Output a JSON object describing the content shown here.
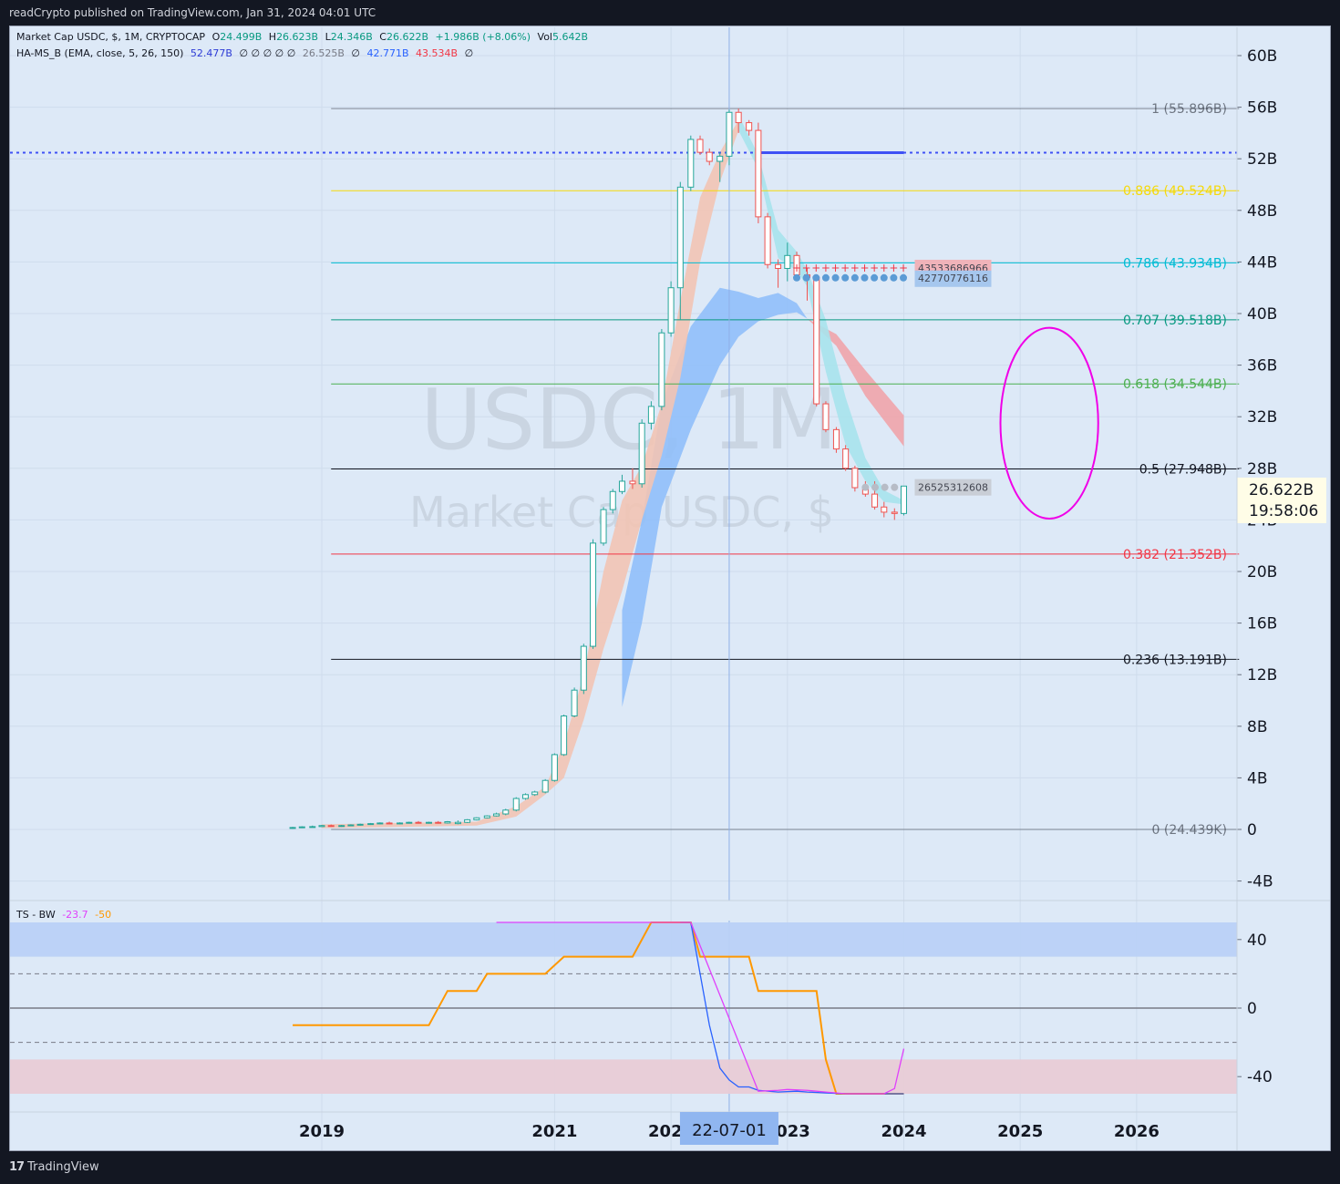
{
  "header": {
    "publisher_text": "readCrypto published on TradingView.com, Jan 31, 2024 04:01 UTC"
  },
  "footer": {
    "brand": "TradingView"
  },
  "watermark": {
    "symbol": "USDC, 1M",
    "name": "Market Cap USDC, $"
  },
  "legend": {
    "main": {
      "title": "Market Cap USDC, $, 1M, CRYPTOCAP",
      "o_label": "O",
      "o": "24.499B",
      "h_label": "H",
      "h": "26.623B",
      "l_label": "L",
      "l": "24.346B",
      "c_label": "C",
      "c": "26.622B",
      "change": "+1.986B (+8.06%)",
      "vol_label": "Vol",
      "vol": "5.642B"
    },
    "indicator": {
      "title": "HA-MS_B (EMA, close, 5, 26, 150)",
      "v1": "52.477B",
      "zeros": "∅ ∅ ∅ ∅ ∅",
      "v2": "26.525B",
      "z2": "∅",
      "v3": "42.771B",
      "v4": "43.534B",
      "z3": "∅"
    },
    "osc": {
      "title": "TS - BW",
      "v1": "-23.7",
      "v2": "-50"
    }
  },
  "price_label": {
    "value": "26.622B",
    "countdown": "19:58:06"
  },
  "crosshair_label": "22-07-01",
  "colors": {
    "up": "#26a69a",
    "down": "#ef5350",
    "fib_886": "#f5d90a",
    "fib_786": "#00bcd4",
    "fib_707": "#089981",
    "fib_618": "#4caf50",
    "fib_382": "#f23645",
    "fib_neutral": "#131722",
    "ribbon_blue": "#90bff9",
    "ribbon_cyan": "#a7e3ec",
    "ribbon_red": "#f0a4aa",
    "ribbon_salmon": "#f2c4b4",
    "osc_blue": "#2962ff",
    "osc_orange": "#ff9800",
    "osc_magenta": "#e040fb",
    "circle": "#f000e8",
    "dotted_blue": "#3f51f5"
  },
  "chart_data": [
    {
      "type": "candlestick",
      "title": "Market Cap USDC, $, 1M, CRYPTOCAP",
      "y_axis": {
        "ticks": [
          "-4B",
          "0",
          "4B",
          "8B",
          "12B",
          "16B",
          "20B",
          "24B",
          "28B",
          "32B",
          "36B",
          "40B",
          "44B",
          "48B",
          "52B",
          "56B",
          "60B"
        ],
        "tick_values": [
          -4,
          0,
          4,
          8,
          12,
          16,
          20,
          24,
          28,
          32,
          36,
          40,
          44,
          48,
          52,
          56,
          60
        ],
        "unit": "B"
      },
      "x_axis": {
        "ticks": [
          "2019",
          "2021",
          "2022",
          "2023",
          "2024",
          "2025",
          "2026"
        ],
        "tick_values": [
          2019.0,
          2021.0,
          2022.0,
          2023.0,
          2024.0,
          2025.0,
          2026.0
        ]
      },
      "candles": [
        {
          "t": 2018.75,
          "o": 0.1,
          "h": 0.2,
          "l": 0.05,
          "c": 0.15
        },
        {
          "t": 2018.83,
          "o": 0.15,
          "h": 0.25,
          "l": 0.1,
          "c": 0.2
        },
        {
          "t": 2018.92,
          "o": 0.2,
          "h": 0.3,
          "l": 0.15,
          "c": 0.22
        },
        {
          "t": 2019.0,
          "o": 0.22,
          "h": 0.35,
          "l": 0.18,
          "c": 0.3
        },
        {
          "t": 2019.08,
          "o": 0.3,
          "h": 0.38,
          "l": 0.2,
          "c": 0.25
        },
        {
          "t": 2019.17,
          "o": 0.25,
          "h": 0.35,
          "l": 0.2,
          "c": 0.3
        },
        {
          "t": 2019.25,
          "o": 0.3,
          "h": 0.4,
          "l": 0.25,
          "c": 0.35
        },
        {
          "t": 2019.33,
          "o": 0.35,
          "h": 0.45,
          "l": 0.3,
          "c": 0.4
        },
        {
          "t": 2019.42,
          "o": 0.4,
          "h": 0.5,
          "l": 0.35,
          "c": 0.45
        },
        {
          "t": 2019.5,
          "o": 0.45,
          "h": 0.55,
          "l": 0.4,
          "c": 0.5
        },
        {
          "t": 2019.58,
          "o": 0.5,
          "h": 0.6,
          "l": 0.4,
          "c": 0.45
        },
        {
          "t": 2019.67,
          "o": 0.45,
          "h": 0.55,
          "l": 0.4,
          "c": 0.5
        },
        {
          "t": 2019.75,
          "o": 0.5,
          "h": 0.6,
          "l": 0.45,
          "c": 0.55
        },
        {
          "t": 2019.83,
          "o": 0.55,
          "h": 0.65,
          "l": 0.45,
          "c": 0.5
        },
        {
          "t": 2019.92,
          "o": 0.5,
          "h": 0.6,
          "l": 0.45,
          "c": 0.55
        },
        {
          "t": 2020.0,
          "o": 0.55,
          "h": 0.65,
          "l": 0.45,
          "c": 0.5
        },
        {
          "t": 2020.08,
          "o": 0.5,
          "h": 0.65,
          "l": 0.45,
          "c": 0.6
        },
        {
          "t": 2020.17,
          "o": 0.45,
          "h": 0.7,
          "l": 0.4,
          "c": 0.55
        },
        {
          "t": 2020.25,
          "o": 0.55,
          "h": 0.8,
          "l": 0.5,
          "c": 0.75
        },
        {
          "t": 2020.33,
          "o": 0.75,
          "h": 0.95,
          "l": 0.7,
          "c": 0.9
        },
        {
          "t": 2020.42,
          "o": 0.9,
          "h": 1.1,
          "l": 0.85,
          "c": 1.05
        },
        {
          "t": 2020.5,
          "o": 1.05,
          "h": 1.3,
          "l": 1.0,
          "c": 1.2
        },
        {
          "t": 2020.58,
          "o": 1.2,
          "h": 1.6,
          "l": 1.1,
          "c": 1.5
        },
        {
          "t": 2020.67,
          "o": 1.5,
          "h": 2.5,
          "l": 1.4,
          "c": 2.4
        },
        {
          "t": 2020.75,
          "o": 2.4,
          "h": 2.8,
          "l": 2.3,
          "c": 2.7
        },
        {
          "t": 2020.83,
          "o": 2.7,
          "h": 3.0,
          "l": 2.6,
          "c": 2.9
        },
        {
          "t": 2020.92,
          "o": 2.9,
          "h": 3.9,
          "l": 2.8,
          "c": 3.8
        },
        {
          "t": 2021.0,
          "o": 3.8,
          "h": 5.9,
          "l": 3.7,
          "c": 5.8
        },
        {
          "t": 2021.08,
          "o": 5.8,
          "h": 8.9,
          "l": 5.7,
          "c": 8.8
        },
        {
          "t": 2021.17,
          "o": 8.8,
          "h": 11.0,
          "l": 8.7,
          "c": 10.8
        },
        {
          "t": 2021.25,
          "o": 10.8,
          "h": 14.4,
          "l": 10.5,
          "c": 14.2
        },
        {
          "t": 2021.33,
          "o": 14.2,
          "h": 22.5,
          "l": 14.0,
          "c": 22.2
        },
        {
          "t": 2021.42,
          "o": 22.2,
          "h": 25.0,
          "l": 22.0,
          "c": 24.8
        },
        {
          "t": 2021.5,
          "o": 24.8,
          "h": 26.4,
          "l": 24.5,
          "c": 26.2
        },
        {
          "t": 2021.58,
          "o": 26.2,
          "h": 27.5,
          "l": 26.0,
          "c": 27.0
        },
        {
          "t": 2021.67,
          "o": 27.0,
          "h": 28.0,
          "l": 26.4,
          "c": 26.8
        },
        {
          "t": 2021.75,
          "o": 26.8,
          "h": 31.8,
          "l": 26.5,
          "c": 31.5
        },
        {
          "t": 2021.83,
          "o": 31.5,
          "h": 33.2,
          "l": 31.0,
          "c": 32.8
        },
        {
          "t": 2021.92,
          "o": 32.8,
          "h": 38.8,
          "l": 32.5,
          "c": 38.5
        },
        {
          "t": 2022.0,
          "o": 38.5,
          "h": 42.5,
          "l": 38.2,
          "c": 42.0
        },
        {
          "t": 2022.08,
          "o": 42.0,
          "h": 50.2,
          "l": 39.5,
          "c": 49.8
        },
        {
          "t": 2022.17,
          "o": 49.8,
          "h": 53.8,
          "l": 49.5,
          "c": 53.5
        },
        {
          "t": 2022.25,
          "o": 53.5,
          "h": 53.8,
          "l": 52.3,
          "c": 52.5
        },
        {
          "t": 2022.33,
          "o": 52.5,
          "h": 52.8,
          "l": 51.5,
          "c": 51.8
        },
        {
          "t": 2022.42,
          "o": 51.8,
          "h": 52.5,
          "l": 50.2,
          "c": 52.2
        },
        {
          "t": 2022.5,
          "o": 52.2,
          "h": 55.8,
          "l": 51.5,
          "c": 55.6
        },
        {
          "t": 2022.58,
          "o": 55.6,
          "h": 55.9,
          "l": 54.0,
          "c": 54.8
        },
        {
          "t": 2022.67,
          "o": 54.8,
          "h": 55.0,
          "l": 53.8,
          "c": 54.2
        },
        {
          "t": 2022.75,
          "o": 54.2,
          "h": 54.8,
          "l": 47.0,
          "c": 47.5
        },
        {
          "t": 2022.83,
          "o": 47.5,
          "h": 47.8,
          "l": 43.5,
          "c": 43.8
        },
        {
          "t": 2022.92,
          "o": 43.8,
          "h": 44.2,
          "l": 42.0,
          "c": 43.5
        },
        {
          "t": 2023.0,
          "o": 43.5,
          "h": 45.5,
          "l": 42.5,
          "c": 44.5
        },
        {
          "t": 2023.08,
          "o": 44.5,
          "h": 44.8,
          "l": 42.8,
          "c": 43.0
        },
        {
          "t": 2023.17,
          "o": 43.0,
          "h": 43.5,
          "l": 41.0,
          "c": 42.8
        },
        {
          "t": 2023.25,
          "o": 42.8,
          "h": 43.0,
          "l": 32.8,
          "c": 33.0
        },
        {
          "t": 2023.33,
          "o": 33.0,
          "h": 33.2,
          "l": 30.8,
          "c": 31.0
        },
        {
          "t": 2023.42,
          "o": 31.0,
          "h": 31.2,
          "l": 29.2,
          "c": 29.5
        },
        {
          "t": 2023.5,
          "o": 29.5,
          "h": 29.8,
          "l": 27.8,
          "c": 28.0
        },
        {
          "t": 2023.58,
          "o": 28.0,
          "h": 28.2,
          "l": 26.2,
          "c": 26.5
        },
        {
          "t": 2023.67,
          "o": 26.5,
          "h": 27.0,
          "l": 25.8,
          "c": 26.0
        },
        {
          "t": 2023.75,
          "o": 26.0,
          "h": 27.0,
          "l": 24.8,
          "c": 25.0
        },
        {
          "t": 2023.83,
          "o": 25.0,
          "h": 25.4,
          "l": 24.2,
          "c": 24.6
        },
        {
          "t": 2023.92,
          "o": 24.6,
          "h": 24.9,
          "l": 24.0,
          "c": 24.5
        },
        {
          "t": 2024.0,
          "o": 24.499,
          "h": 26.623,
          "l": 24.346,
          "c": 26.622
        }
      ],
      "fib_levels": [
        {
          "ratio": 1,
          "value": 55.896,
          "label": "1 (55.896B)",
          "color_key": "fib_neutral",
          "dim": true
        },
        {
          "ratio": 0.886,
          "value": 49.524,
          "label": "0.886 (49.524B)",
          "color_key": "fib_886"
        },
        {
          "ratio": 0.786,
          "value": 43.934,
          "label": "0.786 (43.934B)",
          "color_key": "fib_786"
        },
        {
          "ratio": 0.707,
          "value": 39.518,
          "label": "0.707 (39.518B)",
          "color_key": "fib_707"
        },
        {
          "ratio": 0.618,
          "value": 34.544,
          "label": "0.618 (34.544B)",
          "color_key": "fib_618"
        },
        {
          "ratio": 0.5,
          "value": 27.948,
          "label": "0.5 (27.948B)",
          "color_key": "fib_neutral"
        },
        {
          "ratio": 0.382,
          "value": 21.352,
          "label": "0.382 (21.352B)",
          "color_key": "fib_382"
        },
        {
          "ratio": 0.236,
          "value": 13.191,
          "label": "0.236 (13.191B)",
          "color_key": "fib_neutral"
        },
        {
          "ratio": 0,
          "value": 2.4439e-05,
          "label": "0 (24.439K)",
          "color_key": "fib_neutral",
          "dim": true
        }
      ],
      "dotted_level": {
        "value": 52.477
      },
      "support_markers": [
        {
          "value": 43.534,
          "label": "43533686966",
          "from": 2023.08,
          "to": 2024.0,
          "style": "plus",
          "color_key": "fib_382"
        },
        {
          "value": 42.771,
          "label": "42770776116",
          "from": 2023.08,
          "to": 2024.0,
          "style": "dot",
          "color_key": "osc_blue"
        },
        {
          "value": 26.525,
          "label": "26525312608",
          "from": 2023.67,
          "to": 2024.0,
          "style": "dot",
          "color_key": "fib_neutral"
        }
      ],
      "crosshair_x": 2022.5,
      "circle": {
        "t": 2025.25,
        "v": 31.5,
        "r_t": 0.42,
        "r_v": 7.4
      }
    },
    {
      "type": "line",
      "title": "TS - BW",
      "y_axis": {
        "ticks": [
          "40",
          "0",
          "-40"
        ],
        "tick_values": [
          40,
          0,
          -40
        ]
      },
      "bands": [
        {
          "from": 30,
          "to": 50,
          "color_key": "ribbon_blue"
        },
        {
          "from": -50,
          "to": -30,
          "color_key": "ribbon_red"
        }
      ],
      "dashed_levels": [
        20,
        -20
      ],
      "series": [
        {
          "name": "orange",
          "color_key": "osc_orange",
          "points": [
            [
              2018.75,
              -10
            ],
            [
              2019.92,
              -10
            ],
            [
              2019.92,
              -10
            ],
            [
              2020.08,
              10
            ],
            [
              2020.33,
              10
            ],
            [
              2020.42,
              20
            ],
            [
              2020.92,
              20
            ],
            [
              2021.08,
              30
            ],
            [
              2021.67,
              30
            ],
            [
              2021.83,
              50
            ],
            [
              2022.17,
              50
            ],
            [
              2022.25,
              30
            ],
            [
              2022.67,
              30
            ],
            [
              2022.75,
              10
            ],
            [
              2023.25,
              10
            ],
            [
              2023.33,
              -30
            ],
            [
              2023.42,
              -50
            ],
            [
              2024.0,
              -50
            ]
          ]
        },
        {
          "name": "blue",
          "color_key": "osc_blue",
          "points": [
            [
              2022.08,
              50
            ],
            [
              2022.17,
              50
            ],
            [
              2022.25,
              20
            ],
            [
              2022.33,
              -10
            ],
            [
              2022.42,
              -35
            ],
            [
              2022.5,
              -42
            ],
            [
              2022.58,
              -46
            ],
            [
              2022.67,
              -46
            ],
            [
              2022.75,
              -48
            ],
            [
              2022.92,
              -49
            ],
            [
              2023.08,
              -48.5
            ],
            [
              2023.17,
              -49
            ],
            [
              2023.33,
              -49.5
            ],
            [
              2023.5,
              -50
            ],
            [
              2023.67,
              -50
            ],
            [
              2023.92,
              -50
            ],
            [
              2024.0,
              -50
            ]
          ]
        },
        {
          "name": "magenta",
          "color_key": "osc_magenta",
          "points": [
            [
              2020.5,
              50
            ],
            [
              2022.17,
              50
            ],
            [
              2022.75,
              -48.5
            ],
            [
              2022.92,
              -48
            ],
            [
              2023.0,
              -47.5
            ],
            [
              2023.17,
              -48
            ],
            [
              2023.33,
              -49
            ],
            [
              2023.5,
              -50
            ],
            [
              2023.83,
              -50
            ],
            [
              2023.92,
              -47
            ],
            [
              2024.0,
              -23.7
            ]
          ]
        }
      ]
    }
  ]
}
